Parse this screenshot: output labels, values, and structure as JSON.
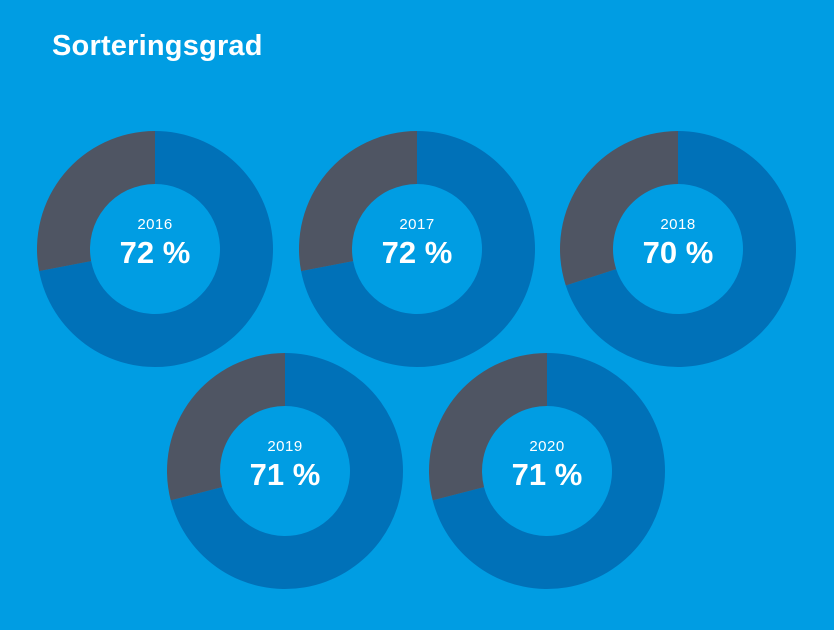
{
  "chart_data": {
    "type": "pie",
    "title": "Sorteringsgrad",
    "categories": [
      "2016",
      "2017",
      "2018",
      "2019",
      "2020"
    ],
    "values": [
      72,
      72,
      70,
      71,
      71
    ],
    "value_labels": [
      "72 %",
      "72 %",
      "70 %",
      "71 %",
      "71 %"
    ],
    "unit": "%",
    "colors": {
      "background": "#009de3",
      "share": "#0071b8",
      "remainder": "#4f5563",
      "center": "#009de3"
    }
  }
}
